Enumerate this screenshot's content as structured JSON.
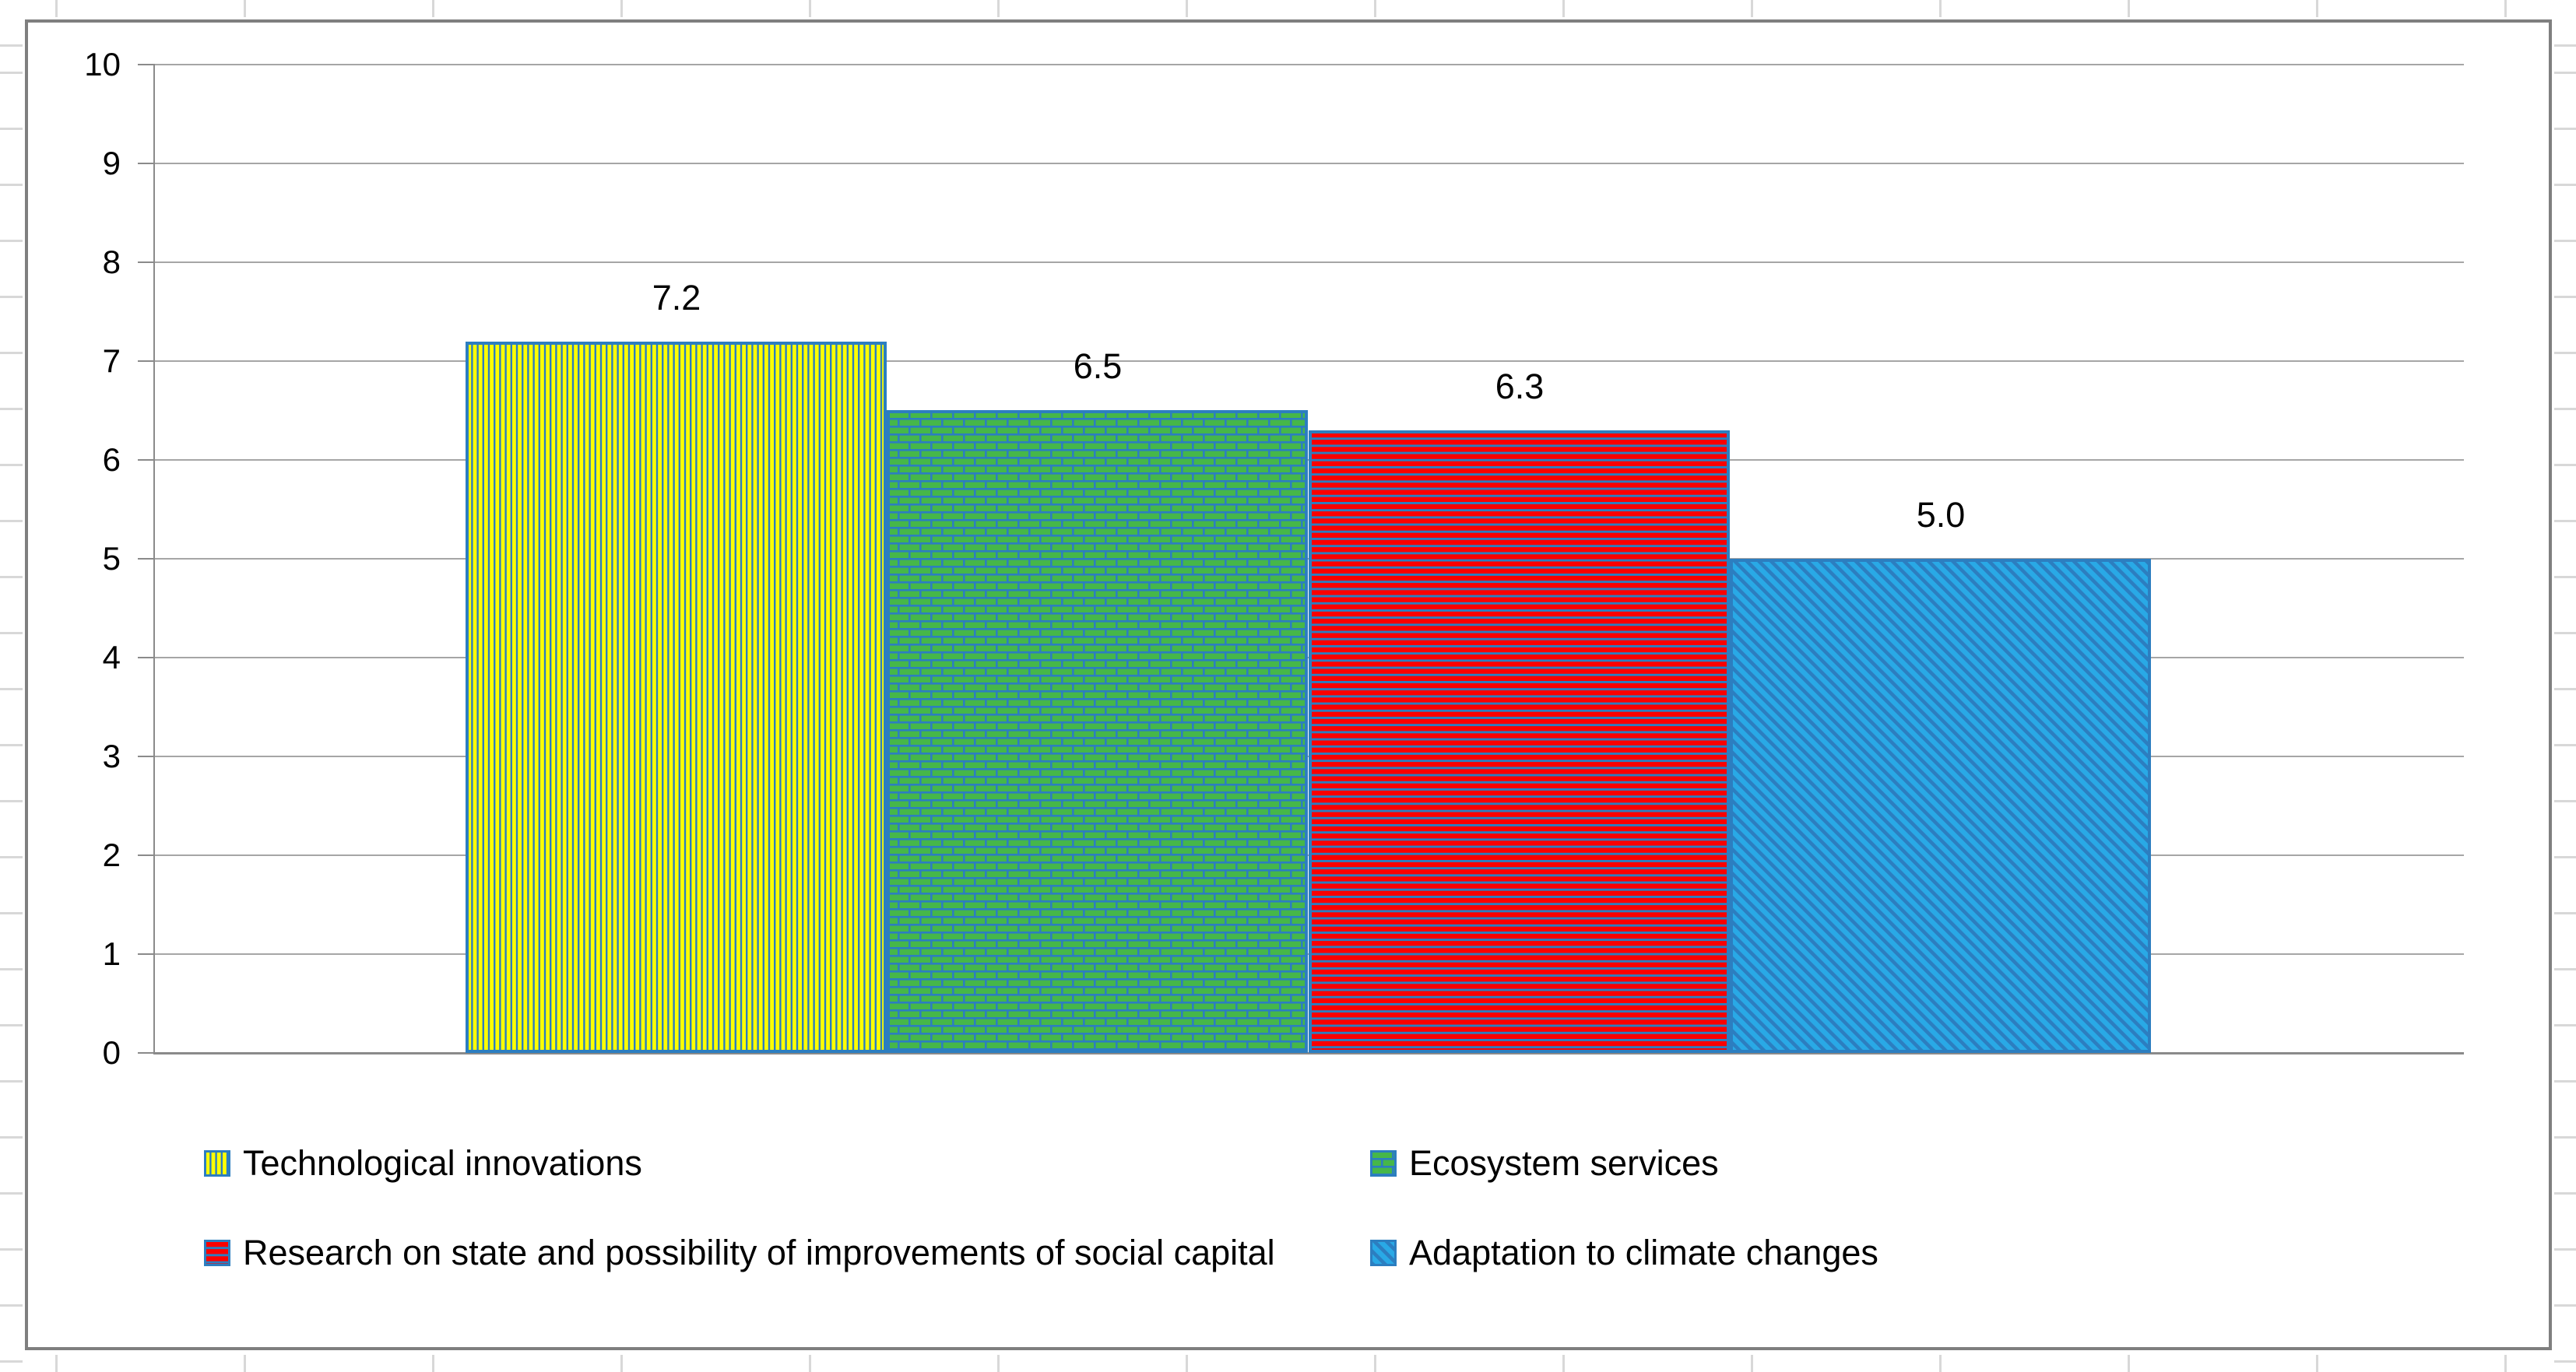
{
  "chart_data": {
    "type": "bar",
    "title": "",
    "xlabel": "",
    "ylabel": "",
    "series": [
      {
        "name": "Technological innovations",
        "value": 7.2,
        "data_label": "7.2",
        "pattern": "vertical-stripes",
        "fill": "#ffff00"
      },
      {
        "name": "Ecosystem services",
        "value": 6.5,
        "data_label": "6.5",
        "pattern": "brick",
        "fill": "#46b749"
      },
      {
        "name": "Research on state and possibility of improvements of social capital",
        "value": 6.3,
        "data_label": "6.3",
        "pattern": "horizontal-stripes",
        "fill": "#fb0000"
      },
      {
        "name": "Adaptation to climate changes",
        "value": 5.0,
        "data_label": "5.0",
        "pattern": "diagonal-stripes",
        "fill": "#29a9e6"
      }
    ],
    "y_axis": {
      "min": 0,
      "max": 10,
      "step": 1,
      "tick_labels": [
        "0",
        "1",
        "2",
        "3",
        "4",
        "5",
        "6",
        "7",
        "8",
        "9",
        "10"
      ]
    },
    "grid": true,
    "legend": {
      "position": "bottom",
      "rows": [
        [
          0,
          1
        ],
        [
          2,
          3
        ]
      ]
    },
    "colors": {
      "pattern_accent": "#2c7ec0",
      "gridline": "#a6a6a6",
      "axis": "#8a8a8a",
      "frame_border": "#7f7f7f",
      "label_text": "#000000"
    }
  }
}
